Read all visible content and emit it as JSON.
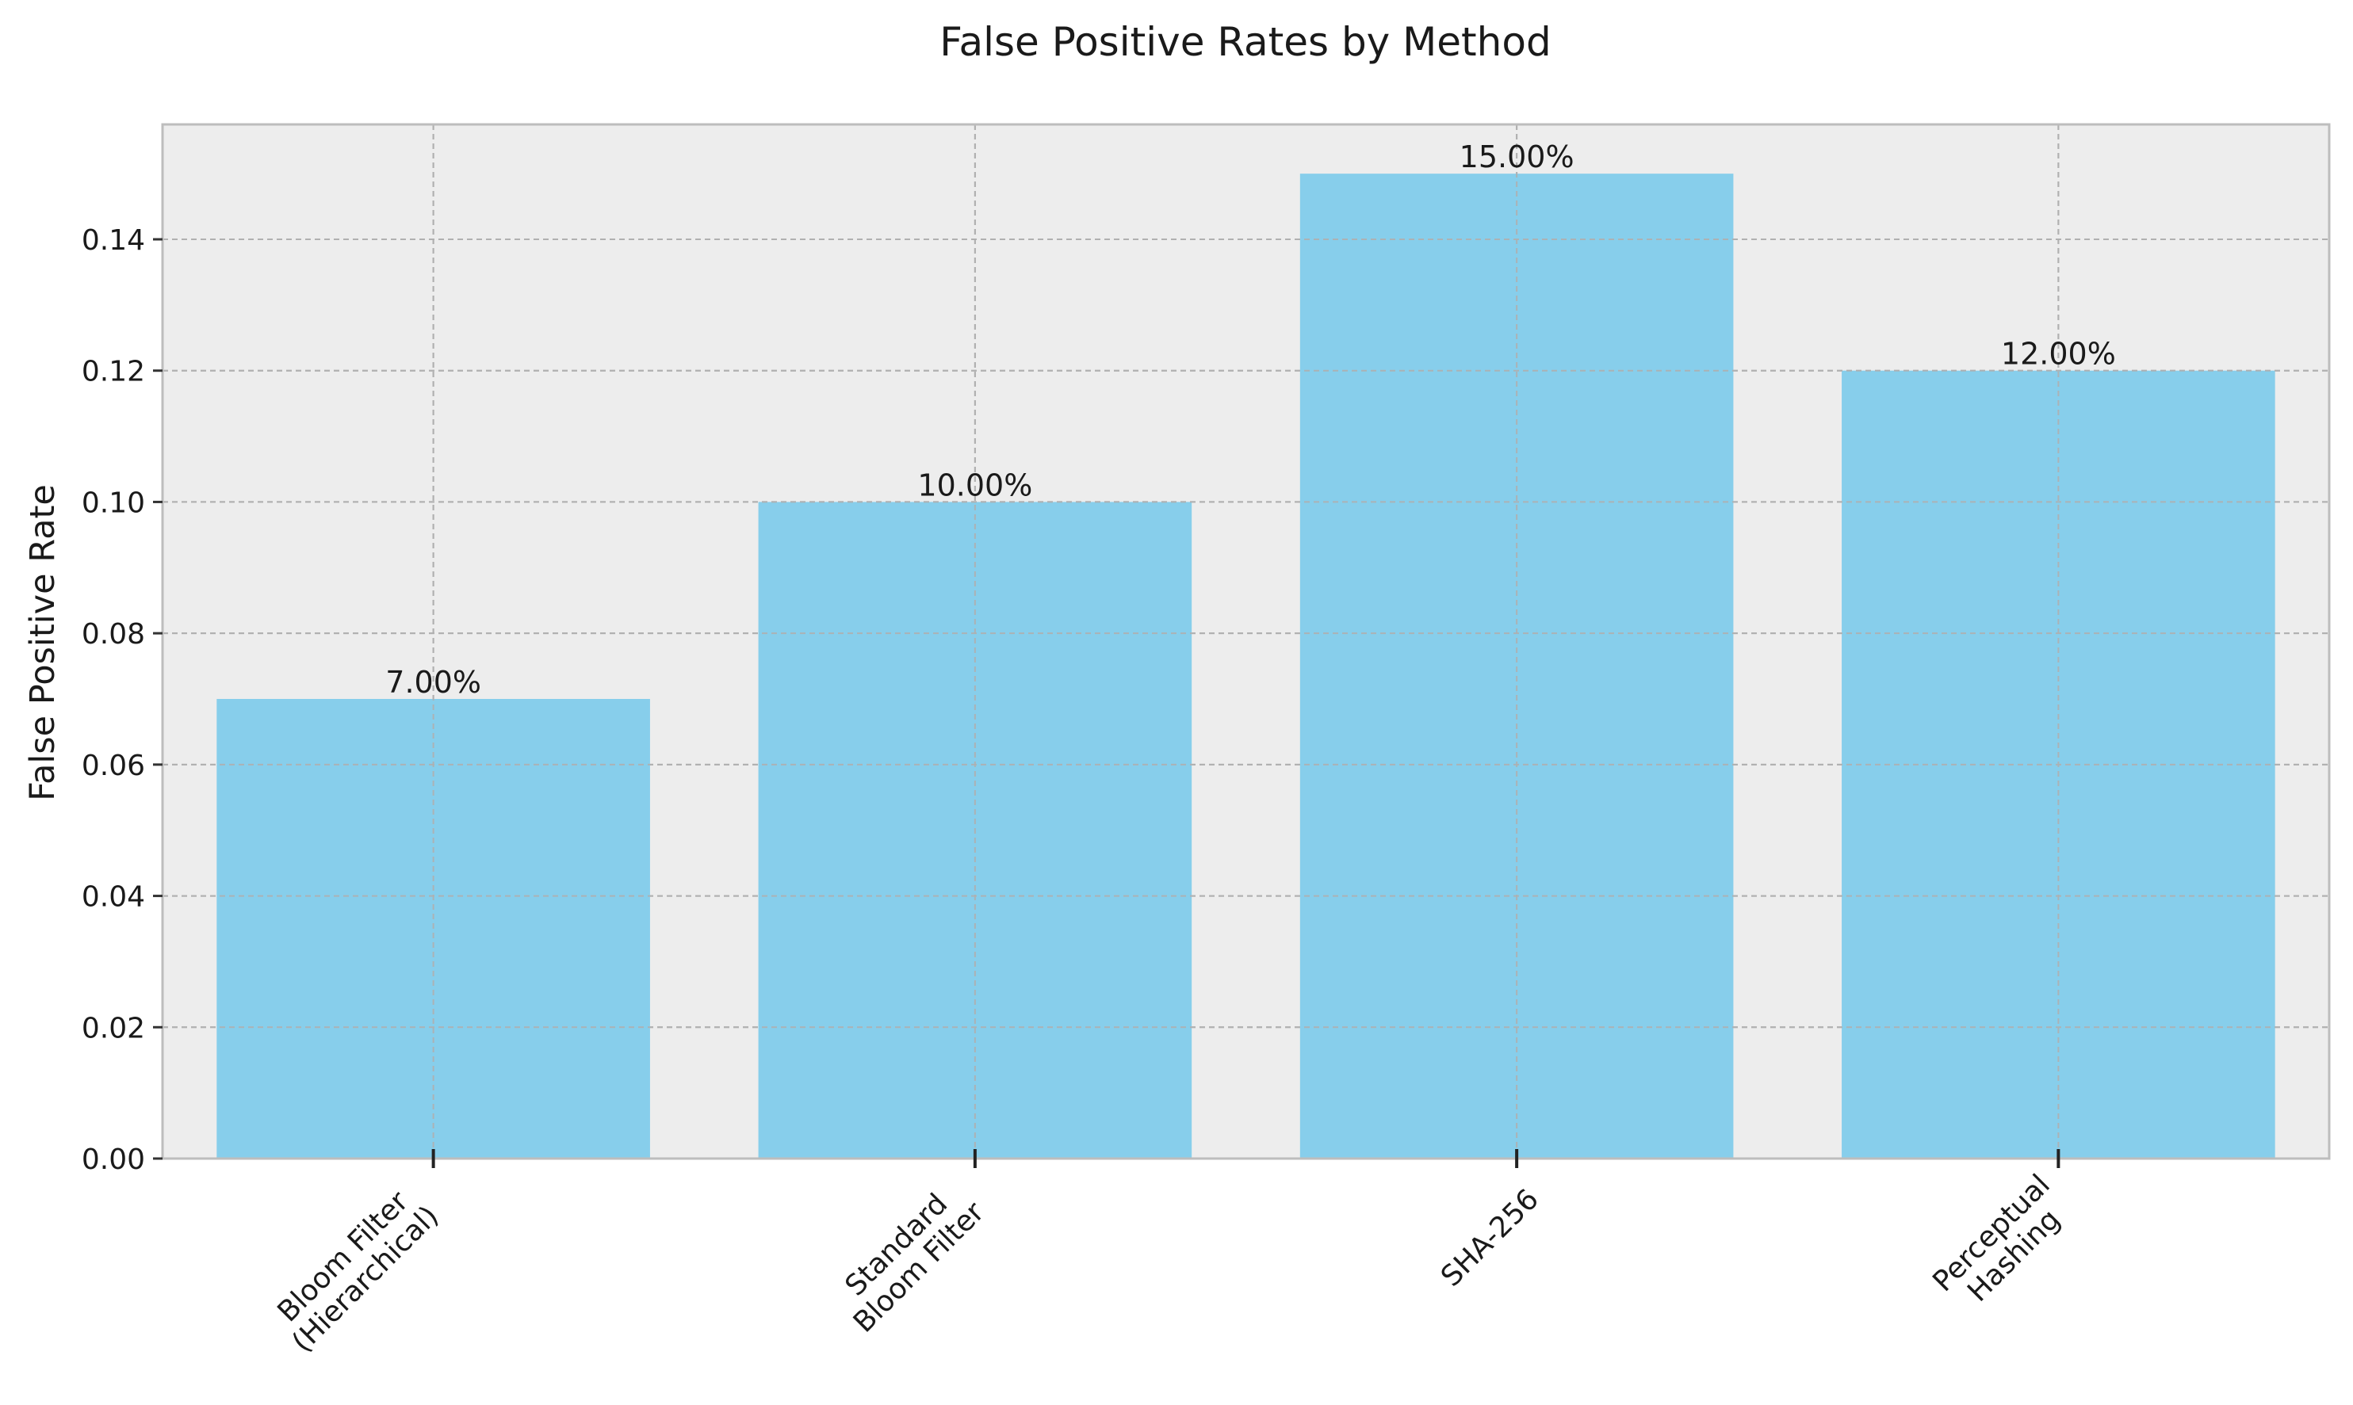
{
  "chart_data": {
    "type": "bar",
    "title": "False Positive Rates by Method",
    "xlabel": "",
    "ylabel": "False Positive Rate",
    "categories": [
      [
        "Bloom Filter",
        "(Hierarchical)"
      ],
      [
        "Standard",
        "Bloom Filter"
      ],
      [
        "SHA-256"
      ],
      [
        "Perceptual",
        "Hashing"
      ]
    ],
    "values": [
      0.07,
      0.1,
      0.15,
      0.12
    ],
    "data_labels": [
      "7.00%",
      "10.00%",
      "15.00%",
      "12.00%"
    ],
    "ylim": [
      0,
      0.1575
    ],
    "yticks": [
      0.0,
      0.02,
      0.04,
      0.06,
      0.08,
      0.1,
      0.12,
      0.14
    ],
    "ytick_labels": [
      "0.00",
      "0.02",
      "0.04",
      "0.06",
      "0.08",
      "0.10",
      "0.12",
      "0.14"
    ],
    "grid": true,
    "legend": "none",
    "colors": {
      "bar": "#87CEEB",
      "plot_background": "#EDEDED",
      "grid": "#B0B0B0",
      "frame": "#BDBDBD"
    }
  }
}
